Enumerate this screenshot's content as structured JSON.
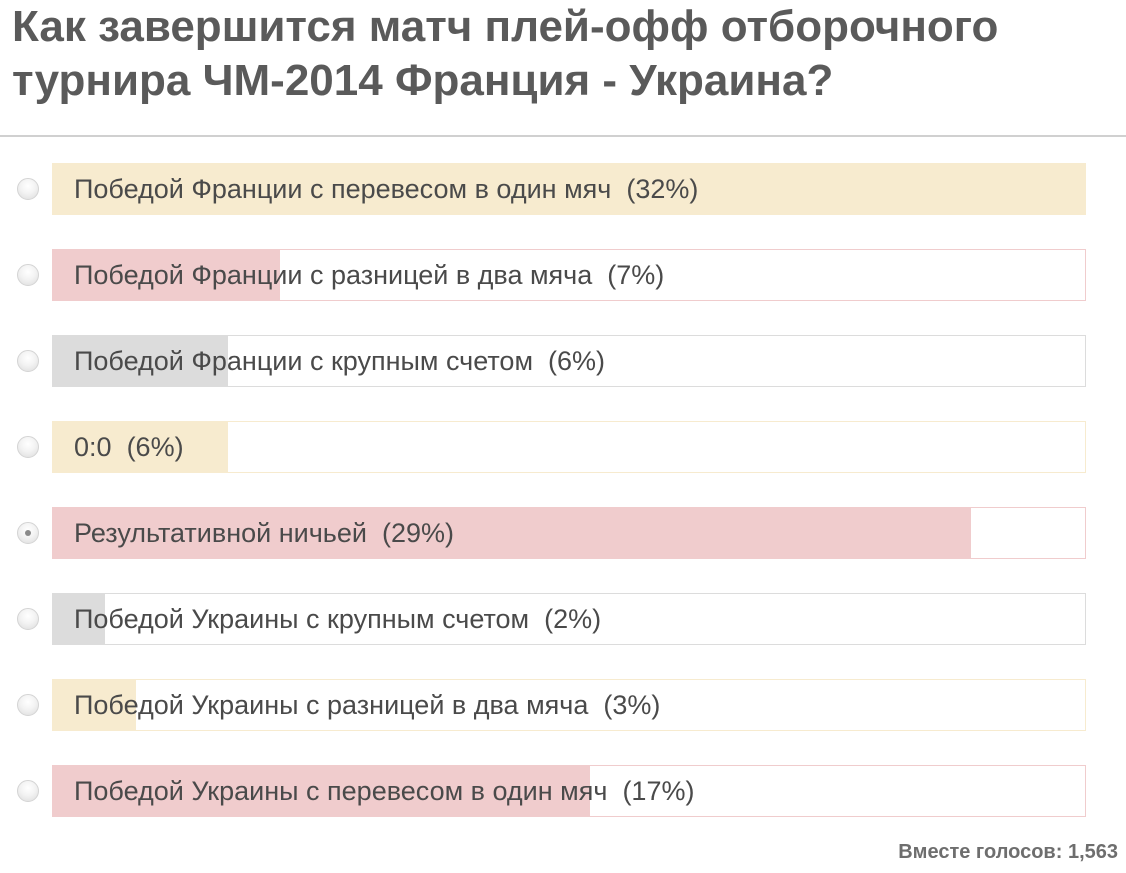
{
  "poll": {
    "question": "Как завершится матч плей-офф отборочного турнира ЧМ-2014 Франция - Украина?",
    "options": [
      {
        "label": "Победой Франции с перевесом в один мяч",
        "percent_text": "(32%)",
        "bar_fraction": 1.0,
        "fill_color": "#f7ebcf",
        "border_color": "#f7ebcf",
        "selected": false
      },
      {
        "label": "Победой Франции с разницей в два мяча",
        "percent_text": "(7%)",
        "bar_fraction": 0.22,
        "fill_color": "#f0cccd",
        "border_color": "#f0cccd",
        "selected": false
      },
      {
        "label": "Победой Франции с крупным счетом",
        "percent_text": "(6%)",
        "bar_fraction": 0.17,
        "fill_color": "#dcdcdc",
        "border_color": "#dcdcdc",
        "selected": false
      },
      {
        "label": "0:0",
        "percent_text": "(6%)",
        "bar_fraction": 0.17,
        "fill_color": "#f7ebcf",
        "border_color": "#f7ebcf",
        "selected": false
      },
      {
        "label": "Результативной ничьей",
        "percent_text": "(29%)",
        "bar_fraction": 0.89,
        "fill_color": "#f0cccd",
        "border_color": "#f0cccd",
        "selected": true
      },
      {
        "label": "Победой Украины с крупным счетом",
        "percent_text": "(2%)",
        "bar_fraction": 0.05,
        "fill_color": "#dcdcdc",
        "border_color": "#dcdcdc",
        "selected": false
      },
      {
        "label": "Победой Украины с разницей в два мяча",
        "percent_text": "(3%)",
        "bar_fraction": 0.08,
        "fill_color": "#f7ebcf",
        "border_color": "#f7ebcf",
        "selected": false
      },
      {
        "label": "Победой Украины с перевесом в один мяч",
        "percent_text": "(17%)",
        "bar_fraction": 0.52,
        "fill_color": "#f0cccd",
        "border_color": "#f0cccd",
        "selected": false
      }
    ],
    "total_votes_text": "Вместе голосов: 1,563"
  }
}
